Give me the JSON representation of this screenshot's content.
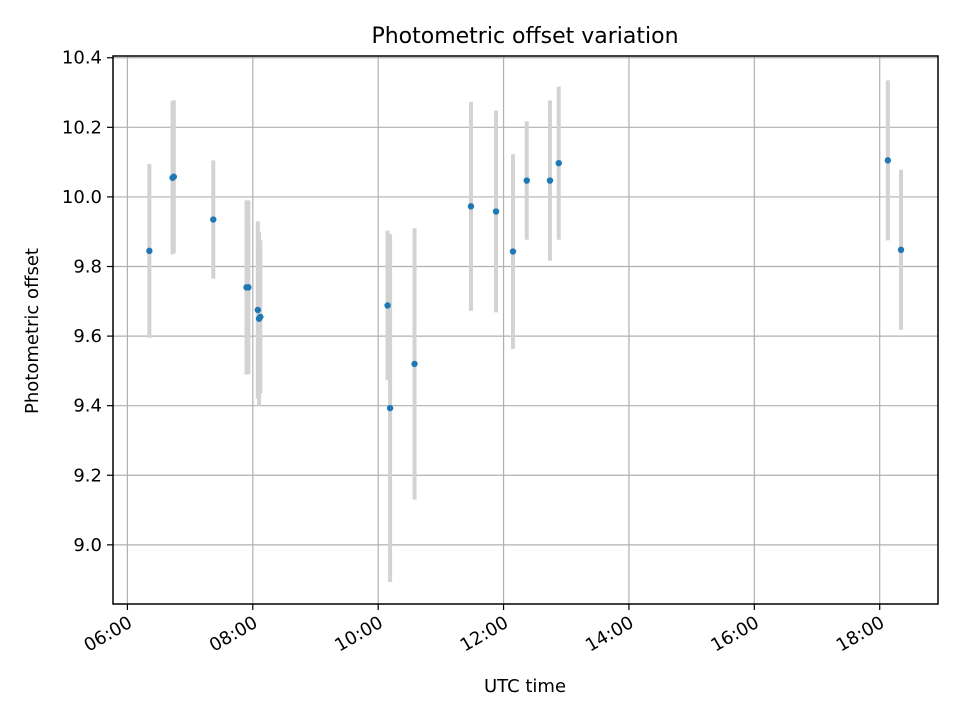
{
  "chart_data": {
    "type": "scatter",
    "title": "Photometric offset variation",
    "xlabel": "UTC time",
    "ylabel": "Photometric offset",
    "x_unit": "hours UTC",
    "xlim": [
      5.77,
      18.93
    ],
    "ylim": [
      8.83,
      10.405
    ],
    "xticks": [
      {
        "value": 6,
        "label": "06:00"
      },
      {
        "value": 8,
        "label": "08:00"
      },
      {
        "value": 10,
        "label": "10:00"
      },
      {
        "value": 12,
        "label": "12:00"
      },
      {
        "value": 14,
        "label": "14:00"
      },
      {
        "value": 16,
        "label": "16:00"
      },
      {
        "value": 18,
        "label": "18:00"
      }
    ],
    "yticks": [
      {
        "value": 9.0,
        "label": "9.0"
      },
      {
        "value": 9.2,
        "label": "9.2"
      },
      {
        "value": 9.4,
        "label": "9.4"
      },
      {
        "value": 9.6,
        "label": "9.6"
      },
      {
        "value": 9.8,
        "label": "9.8"
      },
      {
        "value": 10.0,
        "label": "10.0"
      },
      {
        "value": 10.2,
        "label": "10.2"
      },
      {
        "value": 10.4,
        "label": "10.4"
      }
    ],
    "grid": true,
    "colors": {
      "points": "#1f77b4",
      "error_bars": "#d3d3d3",
      "grid": "#b0b0b0"
    },
    "series": [
      {
        "points": [
          {
            "x": 6.35,
            "y": 9.845,
            "err": 0.25
          },
          {
            "x": 6.72,
            "y": 10.055,
            "err": 0.22
          },
          {
            "x": 6.74,
            "y": 10.058,
            "err": 0.22
          },
          {
            "x": 7.37,
            "y": 9.935,
            "err": 0.17
          },
          {
            "x": 7.9,
            "y": 9.74,
            "err": 0.25
          },
          {
            "x": 7.93,
            "y": 9.74,
            "err": 0.25
          },
          {
            "x": 8.08,
            "y": 9.675,
            "err": 0.255
          },
          {
            "x": 8.1,
            "y": 9.65,
            "err": 0.25
          },
          {
            "x": 8.12,
            "y": 9.655,
            "err": 0.22
          },
          {
            "x": 10.15,
            "y": 9.688,
            "err": 0.215
          },
          {
            "x": 10.19,
            "y": 9.393,
            "err": 0.5
          },
          {
            "x": 10.58,
            "y": 9.52,
            "err": 0.39
          },
          {
            "x": 11.48,
            "y": 9.973,
            "err": 0.3
          },
          {
            "x": 11.88,
            "y": 9.958,
            "err": 0.29
          },
          {
            "x": 12.15,
            "y": 9.843,
            "err": 0.28
          },
          {
            "x": 12.37,
            "y": 10.047,
            "err": 0.17
          },
          {
            "x": 12.74,
            "y": 10.047,
            "err": 0.23
          },
          {
            "x": 12.88,
            "y": 10.097,
            "err": 0.22
          },
          {
            "x": 18.13,
            "y": 10.105,
            "err": 0.23
          },
          {
            "x": 18.34,
            "y": 9.848,
            "err": 0.23
          }
        ]
      }
    ]
  }
}
